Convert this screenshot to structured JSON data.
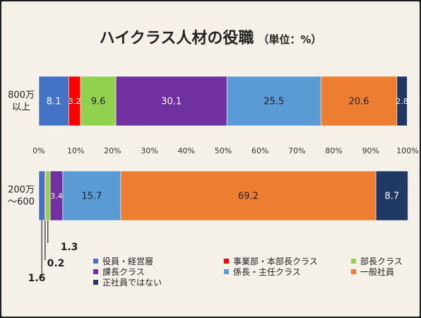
{
  "title": "ハイクラス人材の役職",
  "unit": "（単位：%）",
  "chart_data": {
    "type": "bar",
    "orientation": "horizontal",
    "stacked": true,
    "title": "ハイクラス人材の役職",
    "unit": "（単位：%）",
    "xlim": [
      0,
      100
    ],
    "xticks": [
      "0%",
      "10%",
      "20%",
      "30%",
      "40%",
      "50%",
      "60%",
      "70%",
      "80%",
      "90%",
      "100%"
    ],
    "categories": [
      "800万\n以上",
      "200万\n～600"
    ],
    "category_lines": [
      [
        "800万",
        "以上"
      ],
      [
        "200万",
        "～600"
      ]
    ],
    "series": [
      {
        "name": "役員・経営層",
        "color": "#4472c4",
        "values": [
          8.1,
          1.6
        ]
      },
      {
        "name": "事業部・本部長クラス",
        "color": "#ff0000",
        "values": [
          3.2,
          0.2
        ]
      },
      {
        "name": "部長クラス",
        "color": "#92d050",
        "values": [
          9.6,
          1.3
        ]
      },
      {
        "name": "課長クラス",
        "color": "#7030a0",
        "values": [
          30.1,
          3.4
        ]
      },
      {
        "name": "係長・主任クラス",
        "color": "#5b9bd5",
        "values": [
          25.5,
          15.7
        ]
      },
      {
        "name": "一般社員",
        "color": "#ed7d31",
        "values": [
          20.6,
          69.2
        ]
      },
      {
        "name": "正社員ではない",
        "color": "#1f3864",
        "values": [
          2.8,
          8.7
        ]
      }
    ],
    "data_labels": [
      [
        "8.1",
        "3.2",
        "9.6",
        "30.1",
        "25.5",
        "20.6",
        "2.8"
      ],
      [
        "",
        "",
        "",
        "3.4",
        "15.7",
        "69.2",
        "8.7"
      ]
    ],
    "callouts": [
      "1.6",
      "0.2",
      "1.3"
    ],
    "legend_position": "bottom"
  }
}
